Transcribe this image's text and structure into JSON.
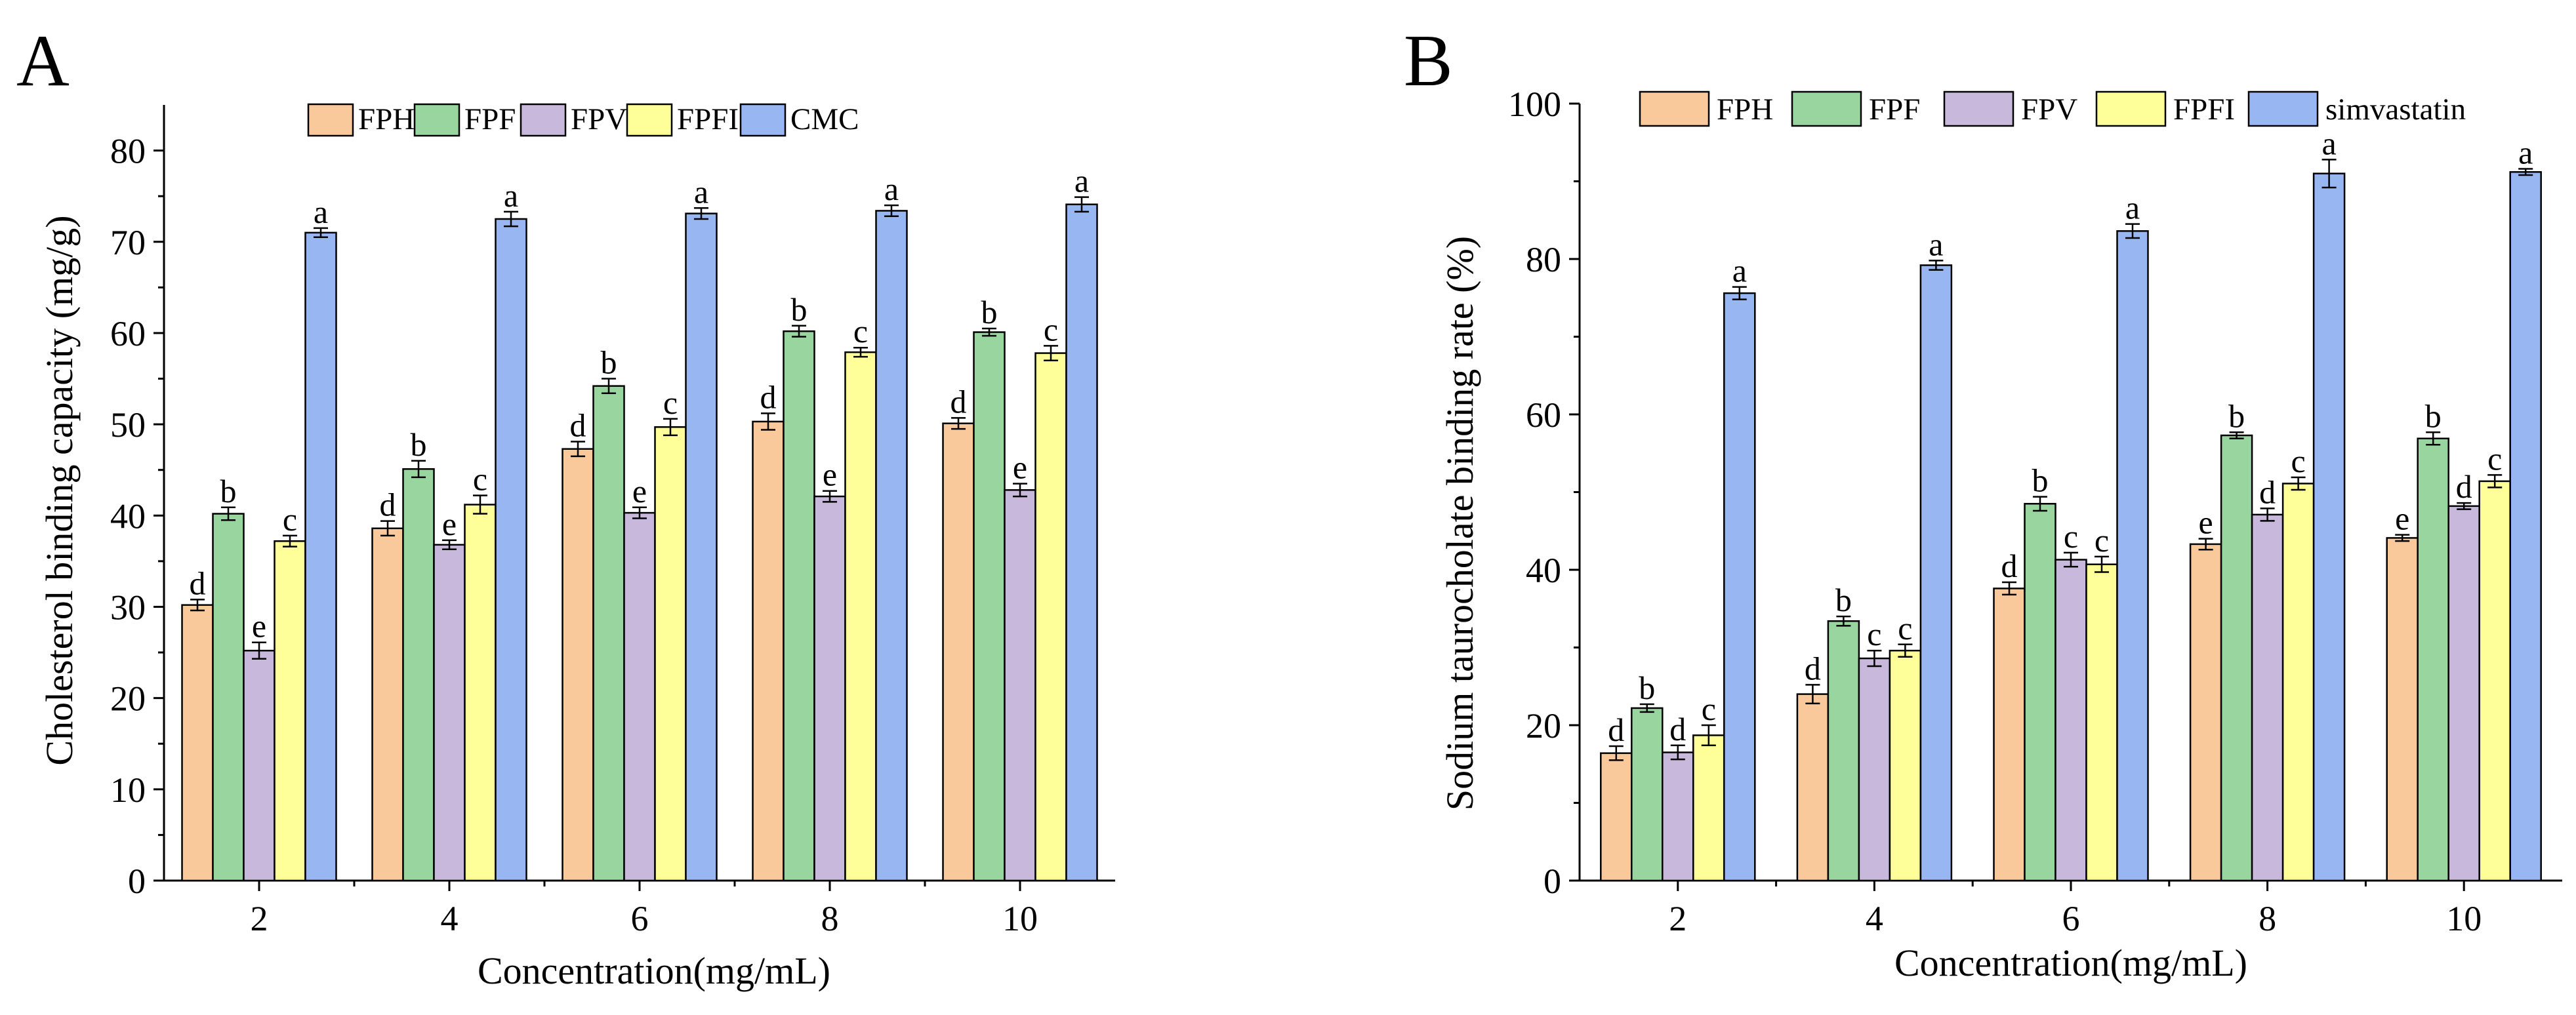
{
  "chart_data": [
    {
      "panel_label": "A",
      "type": "bar",
      "title": "",
      "xlabel": "Concentration(mg/mL)",
      "ylabel": "Cholesterol binding capacity (mg/g)",
      "ylim": [
        0,
        85
      ],
      "yticks": [
        0,
        10,
        20,
        30,
        40,
        50,
        60,
        70,
        80
      ],
      "categories": [
        "2",
        "4",
        "6",
        "8",
        "10"
      ],
      "legend_position": "top",
      "series": [
        {
          "name": "FPH",
          "color": "#f9c89b",
          "values": [
            30.2,
            38.6,
            47.3,
            50.3,
            50.1
          ],
          "errors": [
            0.6,
            0.8,
            0.8,
            0.9,
            0.6
          ],
          "letters": [
            "d",
            "d",
            "d",
            "d",
            "d"
          ]
        },
        {
          "name": "FPF",
          "color": "#98d59f",
          "values": [
            40.2,
            45.1,
            54.2,
            60.2,
            60.1
          ],
          "errors": [
            0.7,
            0.9,
            0.8,
            0.6,
            0.4
          ],
          "letters": [
            "b",
            "b",
            "b",
            "b",
            "b"
          ]
        },
        {
          "name": "FPV",
          "color": "#c8b8dc",
          "values": [
            25.2,
            36.8,
            40.3,
            42.1,
            42.8
          ],
          "errors": [
            0.9,
            0.5,
            0.6,
            0.6,
            0.7
          ],
          "letters": [
            "e",
            "e",
            "e",
            "e",
            "e"
          ]
        },
        {
          "name": "FPFI",
          "color": "#ffff9a",
          "values": [
            37.2,
            41.2,
            49.7,
            57.9,
            57.8
          ],
          "errors": [
            0.6,
            1.0,
            0.9,
            0.5,
            0.8
          ],
          "letters": [
            "c",
            "c",
            "c",
            "c",
            "c"
          ]
        },
        {
          "name": "CMC",
          "color": "#98b6f2",
          "values": [
            71.0,
            72.5,
            73.1,
            73.4,
            74.1
          ],
          "errors": [
            0.5,
            0.8,
            0.6,
            0.6,
            0.8
          ],
          "letters": [
            "a",
            "a",
            "a",
            "a",
            "a"
          ]
        }
      ]
    },
    {
      "panel_label": "B",
      "type": "bar",
      "title": "",
      "xlabel": "Concentration(mg/mL)",
      "ylabel": "Sodium taurocholate binding rate (%)",
      "ylim": [
        0,
        100
      ],
      "yticks": [
        0,
        20,
        40,
        60,
        80,
        100
      ],
      "categories": [
        "2",
        "4",
        "6",
        "8",
        "10"
      ],
      "legend_position": "top",
      "series": [
        {
          "name": "FPH",
          "color": "#f9c89b",
          "values": [
            16.4,
            24.0,
            37.6,
            43.3,
            44.1
          ],
          "errors": [
            0.9,
            1.2,
            0.8,
            0.7,
            0.4
          ],
          "letters": [
            "d",
            "d",
            "d",
            "e",
            "e"
          ]
        },
        {
          "name": "FPF",
          "color": "#98d59f",
          "values": [
            22.2,
            33.4,
            48.5,
            57.3,
            56.9
          ],
          "errors": [
            0.5,
            0.6,
            0.9,
            0.4,
            0.8
          ],
          "letters": [
            "b",
            "b",
            "b",
            "b",
            "b"
          ]
        },
        {
          "name": "FPV",
          "color": "#c8b8dc",
          "values": [
            16.5,
            28.6,
            41.3,
            47.1,
            48.2
          ],
          "errors": [
            0.9,
            1.0,
            0.9,
            0.8,
            0.4
          ],
          "letters": [
            "d",
            "c",
            "c",
            "d",
            "d"
          ]
        },
        {
          "name": "FPFI",
          "color": "#ffff9a",
          "values": [
            18.7,
            29.6,
            40.7,
            51.1,
            51.4
          ],
          "errors": [
            1.3,
            0.8,
            1.0,
            0.8,
            0.8
          ],
          "letters": [
            "c",
            "c",
            "c",
            "c",
            "c"
          ]
        },
        {
          "name": "simvastatin",
          "color": "#98b6f2",
          "values": [
            75.6,
            79.2,
            83.6,
            91.0,
            91.2
          ],
          "errors": [
            0.8,
            0.6,
            0.9,
            1.8,
            0.4
          ],
          "letters": [
            "a",
            "a",
            "a",
            "a",
            "a"
          ]
        }
      ]
    }
  ]
}
